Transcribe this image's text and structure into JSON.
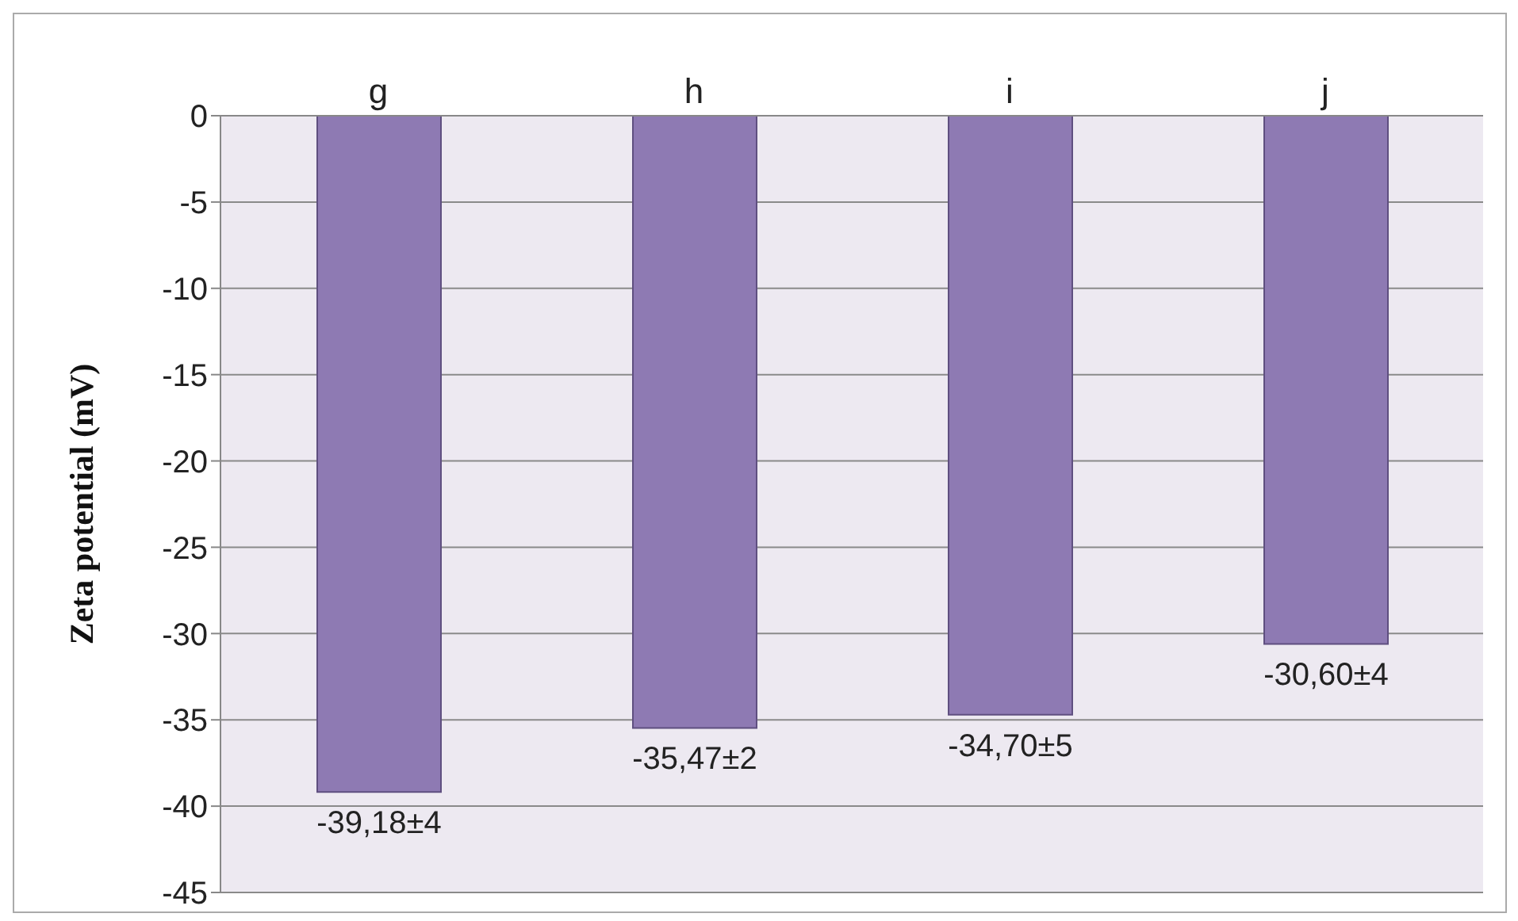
{
  "chart_data": {
    "type": "bar",
    "ylabel": "Zeta potential (mV)",
    "categories": [
      "g",
      "h",
      "i",
      "j"
    ],
    "values": [
      -39.18,
      -35.47,
      -34.7,
      -30.6
    ],
    "value_labels": [
      "-39,18±4",
      "-35,47±2",
      "-34,70±5",
      "-30,60±4"
    ],
    "color": "#8e7ab3",
    "ylim": [
      -45,
      0
    ],
    "yticks": [
      0,
      -5,
      -10,
      -15,
      -20,
      -25,
      -30,
      -35,
      -40,
      -45
    ],
    "grid": "y"
  }
}
